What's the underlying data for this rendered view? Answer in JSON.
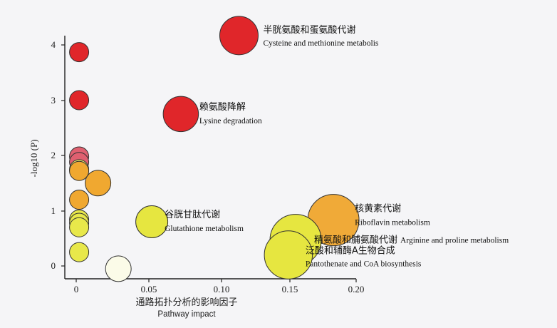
{
  "chart_data": {
    "type": "scatter",
    "title": "",
    "xlabel": "通路拓扑分析的影响因子",
    "xlabel_en": "Pathway impact",
    "ylabel": "-log10 (P)",
    "xlim": [
      0,
      0.2
    ],
    "ylim": [
      0,
      4
    ],
    "x_ticks": [
      "0",
      "0.05",
      "0.10",
      "0.15",
      "0.20"
    ],
    "y_ticks": [
      "0",
      "1",
      "2",
      "3",
      "4"
    ],
    "grid": false,
    "points": [
      {
        "x": 0.002,
        "y": 3.87,
        "size": 3,
        "color": "#e0262a",
        "label_cn": "",
        "label_en": ""
      },
      {
        "x": 0.002,
        "y": 3.0,
        "size": 3,
        "color": "#e0262a",
        "label_cn": "",
        "label_en": ""
      },
      {
        "x": 0.002,
        "y": 1.98,
        "size": 3,
        "color": "#e06070",
        "label_cn": "",
        "label_en": ""
      },
      {
        "x": 0.002,
        "y": 1.88,
        "size": 3,
        "color": "#e06070",
        "label_cn": "",
        "label_en": ""
      },
      {
        "x": 0.002,
        "y": 1.75,
        "size": 3,
        "color": "#e8e86a",
        "label_cn": "",
        "label_en": ""
      },
      {
        "x": 0.002,
        "y": 1.72,
        "size": 3,
        "color": "#f0a830",
        "label_cn": "",
        "label_en": ""
      },
      {
        "x": 0.015,
        "y": 1.5,
        "size": 4,
        "color": "#f0a830",
        "label_cn": "",
        "label_en": ""
      },
      {
        "x": 0.002,
        "y": 1.2,
        "size": 3,
        "color": "#f0a830",
        "label_cn": "",
        "label_en": ""
      },
      {
        "x": 0.002,
        "y": 0.84,
        "size": 3,
        "color": "#e8e84a",
        "label_cn": "",
        "label_en": ""
      },
      {
        "x": 0.002,
        "y": 0.78,
        "size": 3,
        "color": "#e8e84a",
        "label_cn": "",
        "label_en": ""
      },
      {
        "x": 0.002,
        "y": 0.7,
        "size": 3,
        "color": "#e8e84a",
        "label_cn": "",
        "label_en": ""
      },
      {
        "x": 0.002,
        "y": 0.25,
        "size": 3,
        "color": "#e8e84a",
        "label_cn": "",
        "label_en": ""
      },
      {
        "x": 0.029,
        "y": -0.05,
        "size": 4,
        "color": "#fbfbe8",
        "label_cn": "",
        "label_en": ""
      },
      {
        "x": 0.052,
        "y": 0.8,
        "size": 5,
        "color": "#e6e640",
        "label_cn": "谷胱甘肽代谢",
        "label_en": "Glutathione metabolism"
      },
      {
        "x": 0.112,
        "y": 4.17,
        "size": 6,
        "color": "#e0262a",
        "label_cn": "半胱氨酸和蛋氨酸代谢",
        "label_en": "Cysteine and methionine metabolis"
      },
      {
        "x": 0.072,
        "y": 2.75,
        "size": 5.5,
        "color": "#e0262a",
        "label_cn": "赖氨酸降解",
        "label_en": "Lysine degradation"
      },
      {
        "x": 0.177,
        "y": 0.83,
        "size": 8,
        "color": "#f0aa38",
        "label_cn": "核黄素代谢",
        "label_en": "Riboflavin metabolism"
      },
      {
        "x": 0.151,
        "y": 0.47,
        "size": 8,
        "color": "#e6e640",
        "label_cn": "精氨酸和脯氨酸代谢",
        "label_en": "Arginine and proline metabolism"
      },
      {
        "x": 0.146,
        "y": 0.2,
        "size": 7.5,
        "color": "#e6e640",
        "label_cn": "泛酸和辅酶A生物合成",
        "label_en": "Pantothenate and CoA biosynthesis"
      }
    ]
  }
}
